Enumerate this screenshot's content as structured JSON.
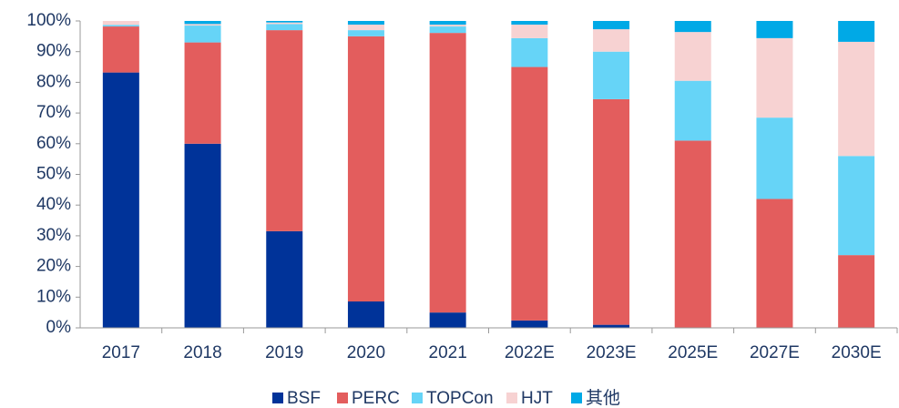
{
  "chart_data": {
    "type": "stacked_bar",
    "categories": [
      "2017",
      "2018",
      "2019",
      "2020",
      "2021",
      "2022E",
      "2023E",
      "2025E",
      "2027E",
      "2030E"
    ],
    "series": [
      {
        "name": "BSF",
        "color": "#003399",
        "values": [
          83.2,
          60,
          31.5,
          8.6,
          5,
          2.4,
          1,
          0,
          0,
          0
        ]
      },
      {
        "name": "PERC",
        "color": "#e35d5d",
        "values": [
          15,
          33,
          65.5,
          86.4,
          91.1,
          82.6,
          73.5,
          61,
          42,
          23.7
        ]
      },
      {
        "name": "TOPCon",
        "color": "#66d4f7",
        "values": [
          0.5,
          5.5,
          2,
          2,
          2.1,
          9.4,
          15.5,
          19.5,
          26.5,
          32.3
        ]
      },
      {
        "name": "HJT",
        "color": "#f7d2d2",
        "values": [
          1.3,
          0.5,
          0.5,
          1.8,
          0.6,
          4.4,
          7.3,
          15.9,
          25.9,
          37.2
        ]
      },
      {
        "name": "其他",
        "color": "#00a9e6",
        "values": [
          0,
          1,
          0.5,
          1.2,
          1.2,
          1.2,
          2.7,
          3.6,
          5.6,
          6.8
        ]
      }
    ],
    "ylim": [
      0,
      100
    ],
    "yticks": [
      {
        "value": 0,
        "label": "0%"
      },
      {
        "value": 10,
        "label": "10%"
      },
      {
        "value": 20,
        "label": "20%"
      },
      {
        "value": 30,
        "label": "30%"
      },
      {
        "value": 40,
        "label": "40%"
      },
      {
        "value": 50,
        "label": "50%"
      },
      {
        "value": 60,
        "label": "60%"
      },
      {
        "value": 70,
        "label": "70%"
      },
      {
        "value": 80,
        "label": "80%"
      },
      {
        "value": 90,
        "label": "90%"
      },
      {
        "value": 100,
        "label": "100%"
      }
    ],
    "grid": false,
    "legend": "bottom"
  }
}
